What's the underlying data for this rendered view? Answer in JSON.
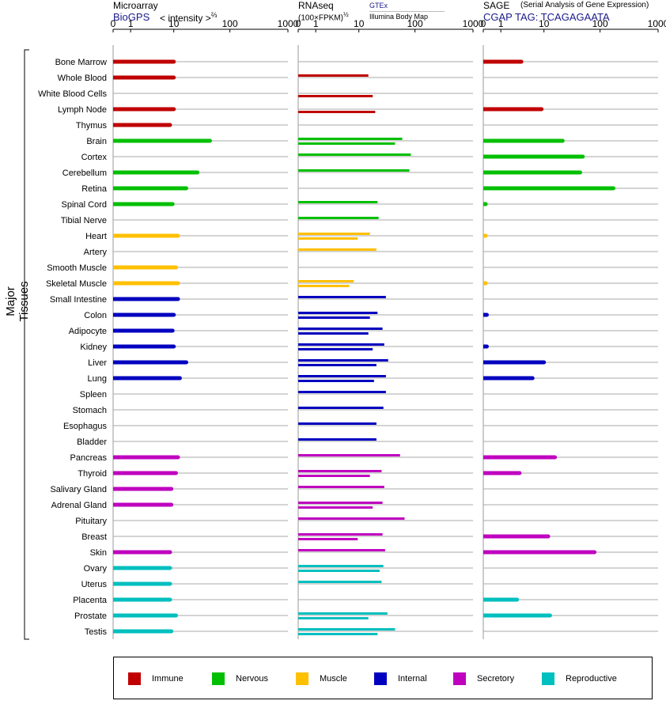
{
  "panels": {
    "microarray": {
      "title": "Microarray",
      "source": "BioGPS",
      "metric": "< intensity >",
      "metric_power": "⅔"
    },
    "rnaseq": {
      "title": "RNAseq",
      "metric": "(100×FPKM)",
      "metric_power": "½",
      "source_top": "GTEx",
      "source_bottom": "Illumina Body Map"
    },
    "sage": {
      "title": "SAGE",
      "subtitle": "(Serial Analysis of Gene Expression)",
      "source": "CGAP TAG: TCAGAGAATA"
    }
  },
  "y_group_label": "Major Tissues",
  "colors": {
    "Immune": "#c00000",
    "Nervous": "#00bf00",
    "Muscle": "#ffc000",
    "Internal": "#0000bf",
    "Secretory": "#bf00bf",
    "Reproductive": "#00bfbf"
  },
  "chart_data": {
    "type": "bar",
    "axis_scale": "log",
    "ticks": [
      "0",
      "1",
      "10",
      "100",
      "1000"
    ],
    "tissues": [
      {
        "name": "Bone Marrow",
        "group": "Immune",
        "microarray": 10,
        "gtex": null,
        "ibm": null,
        "sage": 3.5
      },
      {
        "name": "Whole Blood",
        "group": "Immune",
        "microarray": 10,
        "gtex": 15,
        "ibm": null,
        "sage": null
      },
      {
        "name": "White Blood Cells",
        "group": "Immune",
        "microarray": null,
        "gtex": null,
        "ibm": 18,
        "sage": null
      },
      {
        "name": "Lymph Node",
        "group": "Immune",
        "microarray": 10,
        "gtex": null,
        "ibm": 20,
        "sage": 9
      },
      {
        "name": "Thymus",
        "group": "Immune",
        "microarray": 8.5,
        "gtex": null,
        "ibm": null,
        "sage": null
      },
      {
        "name": "Brain",
        "group": "Nervous",
        "microarray": 45,
        "gtex": 60,
        "ibm": 45,
        "sage": 22
      },
      {
        "name": "Cortex",
        "group": "Nervous",
        "microarray": null,
        "gtex": 85,
        "ibm": null,
        "sage": 50
      },
      {
        "name": "Cerebellum",
        "group": "Nervous",
        "microarray": 27,
        "gtex": 80,
        "ibm": null,
        "sage": 45
      },
      {
        "name": "Retina",
        "group": "Nervous",
        "microarray": 17,
        "gtex": null,
        "ibm": null,
        "sage": 170
      },
      {
        "name": "Spinal Cord",
        "group": "Nervous",
        "microarray": 9.5,
        "gtex": 22,
        "ibm": null,
        "sage": 0.1
      },
      {
        "name": "Tibial Nerve",
        "group": "Nervous",
        "microarray": null,
        "gtex": 23,
        "ibm": null,
        "sage": null
      },
      {
        "name": "Heart",
        "group": "Muscle",
        "microarray": 12,
        "gtex": 16,
        "ibm": 9.5,
        "sage": 0.1
      },
      {
        "name": "Artery",
        "group": "Muscle",
        "microarray": null,
        "gtex": 21,
        "ibm": null,
        "sage": null
      },
      {
        "name": "Smooth Muscle",
        "group": "Muscle",
        "microarray": 11,
        "gtex": null,
        "ibm": null,
        "sage": null
      },
      {
        "name": "Skeletal Muscle",
        "group": "Muscle",
        "microarray": 12,
        "gtex": 8,
        "ibm": 6.5,
        "sage": 0.1
      },
      {
        "name": "Small Intestine",
        "group": "Internal",
        "microarray": 12,
        "gtex": 31,
        "ibm": null,
        "sage": null
      },
      {
        "name": "Colon",
        "group": "Internal",
        "microarray": 10,
        "gtex": 22,
        "ibm": 16,
        "sage": 0.15
      },
      {
        "name": "Adipocyte",
        "group": "Internal",
        "microarray": 9.5,
        "gtex": 27,
        "ibm": 15,
        "sage": null
      },
      {
        "name": "Kidney",
        "group": "Internal",
        "microarray": 10,
        "gtex": 29,
        "ibm": 18,
        "sage": 0.15
      },
      {
        "name": "Liver",
        "group": "Internal",
        "microarray": 17,
        "gtex": 34,
        "ibm": 21,
        "sage": 10
      },
      {
        "name": "Lung",
        "group": "Internal",
        "microarray": 13,
        "gtex": 31,
        "ibm": 19,
        "sage": 6
      },
      {
        "name": "Spleen",
        "group": "Internal",
        "microarray": null,
        "gtex": 31,
        "ibm": null,
        "sage": null
      },
      {
        "name": "Stomach",
        "group": "Internal",
        "microarray": null,
        "gtex": 28,
        "ibm": null,
        "sage": null
      },
      {
        "name": "Esophagus",
        "group": "Internal",
        "microarray": null,
        "gtex": 21,
        "ibm": null,
        "sage": null
      },
      {
        "name": "Bladder",
        "group": "Internal",
        "microarray": null,
        "gtex": 21,
        "ibm": null,
        "sage": null
      },
      {
        "name": "Pancreas",
        "group": "Secretory",
        "microarray": 12,
        "gtex": 55,
        "ibm": null,
        "sage": 16
      },
      {
        "name": "Thyroid",
        "group": "Secretory",
        "microarray": 11,
        "gtex": 26,
        "ibm": 16,
        "sage": 3.2
      },
      {
        "name": "Salivary Gland",
        "group": "Secretory",
        "microarray": 9,
        "gtex": 29,
        "ibm": null,
        "sage": null
      },
      {
        "name": "Adrenal Gland",
        "group": "Secretory",
        "microarray": 9,
        "gtex": 27,
        "ibm": 18,
        "sage": null
      },
      {
        "name": "Pituitary",
        "group": "Secretory",
        "microarray": null,
        "gtex": 66,
        "ibm": null,
        "sage": null
      },
      {
        "name": "Breast",
        "group": "Secretory",
        "microarray": null,
        "gtex": 27,
        "ibm": 9.5,
        "sage": 12
      },
      {
        "name": "Skin",
        "group": "Secretory",
        "microarray": 8.5,
        "gtex": 30,
        "ibm": null,
        "sage": 80
      },
      {
        "name": "Ovary",
        "group": "Reproductive",
        "microarray": 8.5,
        "gtex": 28,
        "ibm": 24,
        "sage": null
      },
      {
        "name": "Uterus",
        "group": "Reproductive",
        "microarray": 8.5,
        "gtex": 26,
        "ibm": null,
        "sage": null
      },
      {
        "name": "Placenta",
        "group": "Reproductive",
        "microarray": 8.5,
        "gtex": null,
        "ibm": null,
        "sage": 2.8
      },
      {
        "name": "Prostate",
        "group": "Reproductive",
        "microarray": 11,
        "gtex": 33,
        "ibm": 15,
        "sage": 13
      },
      {
        "name": "Testis",
        "group": "Reproductive",
        "microarray": 9,
        "gtex": 45,
        "ibm": 22,
        "sage": null
      }
    ],
    "legend": [
      "Immune",
      "Nervous",
      "Muscle",
      "Internal",
      "Secretory",
      "Reproductive"
    ]
  }
}
